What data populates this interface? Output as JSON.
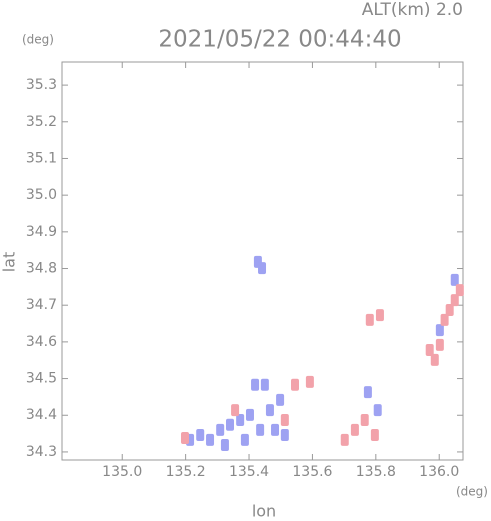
{
  "chart_data": {
    "type": "scatter",
    "title": "2021/05/22 00:44:40",
    "subtitle": "ALT(km)  2.0",
    "x_unit": "(deg)",
    "y_unit": "(deg)",
    "x_label": "lon",
    "y_label": "lat",
    "xlim": [
      134.81,
      136.075
    ],
    "ylim": [
      34.278,
      35.363
    ],
    "xticks": [
      {
        "value": 135,
        "label": "135.0"
      },
      135.2,
      135.4,
      135.6,
      135.8,
      {
        "value": 136,
        "label": "136.0"
      }
    ],
    "yticks": [
      34.3,
      34.4,
      34.5,
      34.6,
      34.7,
      34.8,
      34.9,
      {
        "value": 35,
        "label": "35.0"
      },
      35.1,
      35.2,
      35.3
    ],
    "grid": false,
    "series": [
      {
        "color": "#9ea2f2",
        "x": [
          135.246,
          135.277,
          135.309,
          135.34,
          135.372,
          135.403,
          135.435,
          135.466,
          135.498,
          135.45,
          135.419,
          135.387,
          135.324,
          135.214,
          135.482,
          135.513,
          135.428,
          135.441,
          135.775,
          135.806,
          136.002,
          136.049
        ],
        "y": [
          34.346,
          34.333,
          34.36,
          34.374,
          34.387,
          34.401,
          34.36,
          34.414,
          34.442,
          34.483,
          34.483,
          34.333,
          34.319,
          34.333,
          34.36,
          34.346,
          34.818,
          34.801,
          34.463,
          34.414,
          34.632,
          34.769
        ]
      },
      {
        "color": "#f2a2aa",
        "x": [
          136.002,
          135.97,
          136.017,
          136.049,
          136.065,
          135.986,
          136.033,
          135.702,
          135.734,
          135.765,
          135.797,
          135.813,
          135.781,
          135.545,
          135.592,
          135.198,
          135.356,
          135.513
        ],
        "y": [
          34.592,
          34.578,
          34.66,
          34.714,
          34.741,
          34.551,
          34.687,
          34.333,
          34.36,
          34.387,
          34.346,
          34.673,
          34.66,
          34.483,
          34.491,
          34.338,
          34.414,
          34.387
        ]
      }
    ]
  }
}
